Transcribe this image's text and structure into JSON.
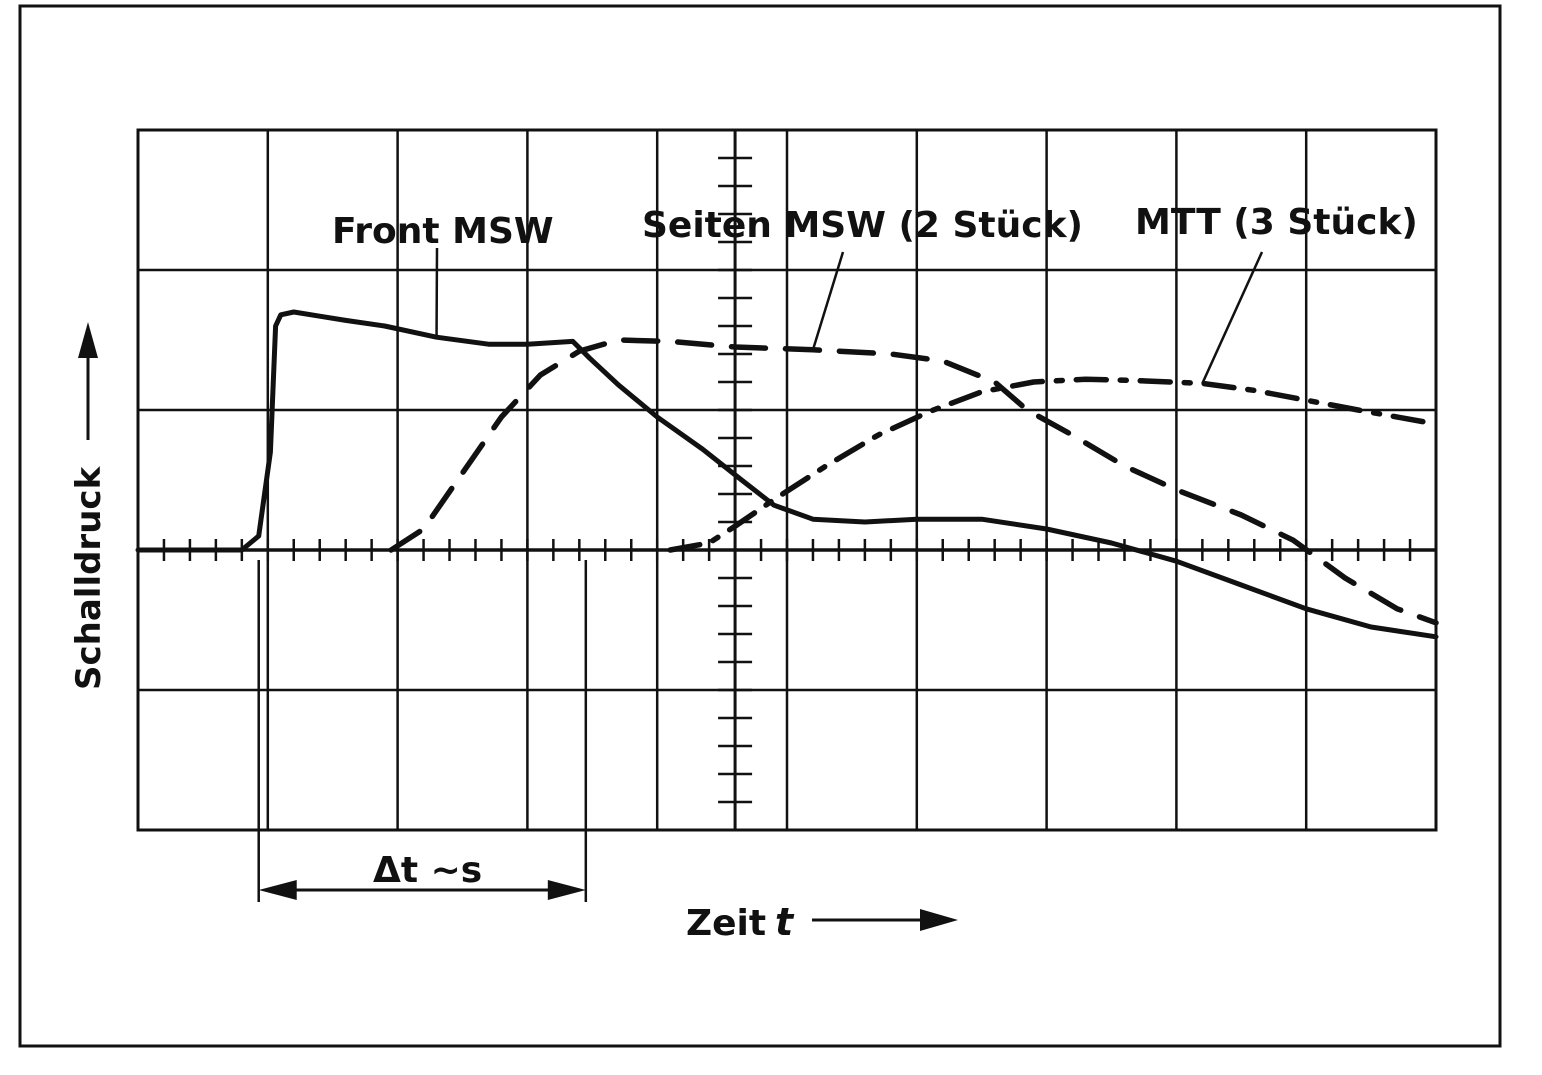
{
  "chart_data": {
    "type": "line",
    "title": "",
    "xlabel": "Zeit",
    "xlabel_symbol": "t",
    "ylabel": "Schalldruck",
    "xlim": [
      0,
      10
    ],
    "ylim": [
      -2,
      3
    ],
    "grid": true,
    "legend": "curve labels at top with leader lines",
    "annotation": {
      "text": "Δt ~s",
      "from_x": 0.93,
      "to_x": 3.45
    },
    "series": [
      {
        "name": "Front MSW",
        "style": "solid",
        "points": [
          [
            0,
            0
          ],
          [
            0.8,
            0
          ],
          [
            0.93,
            0.1
          ],
          [
            1.02,
            0.7
          ],
          [
            1.06,
            1.6
          ],
          [
            1.1,
            1.68
          ],
          [
            1.2,
            1.7
          ],
          [
            1.4,
            1.67
          ],
          [
            1.6,
            1.64
          ],
          [
            1.9,
            1.6
          ],
          [
            2.3,
            1.52
          ],
          [
            2.7,
            1.47
          ],
          [
            3.0,
            1.47
          ],
          [
            3.35,
            1.49
          ],
          [
            3.48,
            1.37
          ],
          [
            3.7,
            1.18
          ],
          [
            4.0,
            0.95
          ],
          [
            4.35,
            0.72
          ],
          [
            4.65,
            0.5
          ],
          [
            4.9,
            0.32
          ],
          [
            5.2,
            0.22
          ],
          [
            5.6,
            0.2
          ],
          [
            6.0,
            0.22
          ],
          [
            6.5,
            0.22
          ],
          [
            7.0,
            0.15
          ],
          [
            7.5,
            0.05
          ],
          [
            8.0,
            -0.08
          ],
          [
            8.5,
            -0.25
          ],
          [
            9.0,
            -0.42
          ],
          [
            9.5,
            -0.55
          ],
          [
            10.0,
            -0.62
          ]
        ]
      },
      {
        "name": "Seiten MSW (2 Stück)",
        "style": "dashed",
        "points": [
          [
            1.95,
            0
          ],
          [
            2.2,
            0.15
          ],
          [
            2.5,
            0.55
          ],
          [
            2.8,
            0.95
          ],
          [
            3.1,
            1.25
          ],
          [
            3.4,
            1.42
          ],
          [
            3.7,
            1.5
          ],
          [
            4.1,
            1.49
          ],
          [
            4.6,
            1.45
          ],
          [
            5.2,
            1.43
          ],
          [
            5.8,
            1.4
          ],
          [
            6.2,
            1.35
          ],
          [
            6.6,
            1.2
          ],
          [
            6.85,
            1.0
          ],
          [
            7.2,
            0.82
          ],
          [
            7.6,
            0.6
          ],
          [
            8.0,
            0.43
          ],
          [
            8.5,
            0.25
          ],
          [
            8.9,
            0.07
          ],
          [
            9.3,
            -0.2
          ],
          [
            9.7,
            -0.42
          ],
          [
            10.0,
            -0.52
          ]
        ]
      },
      {
        "name": "MTT (3 Stück)",
        "style": "dash-dot",
        "points": [
          [
            4.1,
            0
          ],
          [
            4.4,
            0.05
          ],
          [
            4.6,
            0.17
          ],
          [
            4.9,
            0.36
          ],
          [
            5.3,
            0.6
          ],
          [
            5.7,
            0.82
          ],
          [
            6.1,
            0.99
          ],
          [
            6.5,
            1.13
          ],
          [
            6.9,
            1.2
          ],
          [
            7.3,
            1.22
          ],
          [
            7.7,
            1.21
          ],
          [
            8.2,
            1.19
          ],
          [
            8.6,
            1.14
          ],
          [
            9.0,
            1.07
          ],
          [
            9.4,
            1.0
          ],
          [
            10.0,
            0.9
          ]
        ]
      }
    ]
  }
}
